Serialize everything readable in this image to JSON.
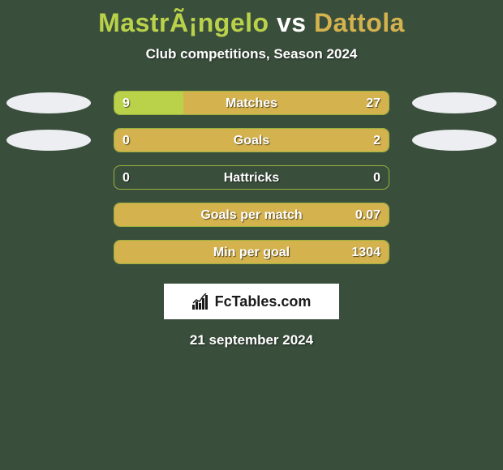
{
  "background_color": "#3a4e3c",
  "title": {
    "player1": "MastrÃ¡ngelo",
    "vs": "vs",
    "player2": "Dattola",
    "player1_color": "#b9d24a",
    "vs_color": "#ffffff",
    "player2_color": "#d4b24e"
  },
  "subtitle": {
    "text": "Club competitions, Season 2024",
    "color": "#ffffff"
  },
  "bar_style": {
    "border_color": "#9ab23e",
    "left_fill": "#b9d24a",
    "right_fill": "#d4b24e",
    "empty_fill": "#3a4e3c",
    "text_color": "#ffffff"
  },
  "oval_color": "#eceef1",
  "rows": [
    {
      "label": "Matches",
      "left_value": "9",
      "right_value": "27",
      "left_pct": 25,
      "right_pct": 75,
      "show_ovals": true
    },
    {
      "label": "Goals",
      "left_value": "0",
      "right_value": "2",
      "left_pct": 0,
      "right_pct": 100,
      "show_ovals": true
    },
    {
      "label": "Hattricks",
      "left_value": "0",
      "right_value": "0",
      "left_pct": 0,
      "right_pct": 0,
      "show_ovals": false
    },
    {
      "label": "Goals per match",
      "left_value": "",
      "right_value": "0.07",
      "left_pct": 0,
      "right_pct": 100,
      "show_ovals": false
    },
    {
      "label": "Min per goal",
      "left_value": "",
      "right_value": "1304",
      "left_pct": 0,
      "right_pct": 100,
      "show_ovals": false
    }
  ],
  "brand": {
    "text": "FcTables.com",
    "bg_color": "#ffffff",
    "text_color": "#1a1a1a",
    "icon_color": "#1a1a1a"
  },
  "date": {
    "text": "21 september 2024",
    "color": "#ffffff"
  }
}
